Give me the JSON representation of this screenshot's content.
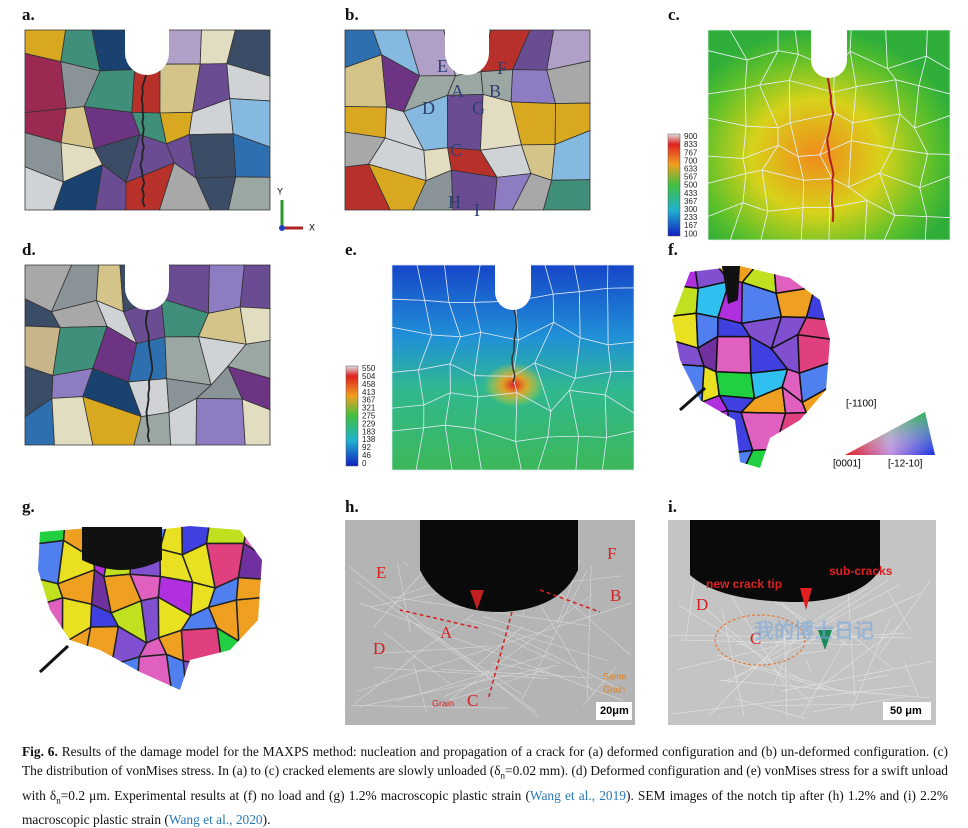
{
  "panel_labels": [
    "a.",
    "b.",
    "c.",
    "d.",
    "e.",
    "f.",
    "g.",
    "h.",
    "i."
  ],
  "grain_labels": [
    "E",
    "F",
    "A",
    "B",
    "D",
    "G",
    "C",
    "H",
    "I"
  ],
  "axis_triad": {
    "y": "Y",
    "x": "X"
  },
  "colorbar_c": [
    900,
    833,
    767,
    700,
    633,
    567,
    500,
    433,
    367,
    300,
    233,
    167,
    100
  ],
  "colorbar_e": [
    550,
    504,
    458,
    413,
    367,
    321,
    275,
    229,
    183,
    138,
    92,
    46,
    0
  ],
  "ipf_legend": [
    "[-1100]",
    "[0001]",
    "[-12-10]"
  ],
  "sem_h": {
    "labels": [
      "E",
      "F",
      "B",
      "A",
      "D"
    ],
    "grain_c": [
      "Grain",
      "C"
    ],
    "same_grain": [
      "Same",
      "Grain"
    ],
    "scale": "20μm"
  },
  "sem_i": {
    "new_crack_tip": "new crack tip",
    "sub_cracks": "sub-cracks",
    "labels": [
      "D",
      "C"
    ],
    "scale": "50 μm"
  },
  "watermark": "我的博士日记",
  "caption": [
    "Fig. 6.",
    " Results of the damage model for the MAXPS method: nucleation and propagation of a crack for (a) deformed configuration and (b) un-deformed configuration. (c) The distribution of vonMises stress. In (a) to (c) cracked elements are slowly unloaded (δ",
    "n",
    "=0.02 mm). (d) Deformed configuration and (e) vonMises stress for a swift unload with δ",
    "n",
    "=0.2 μm. Experimental results at (f) no load and (g) 1.2% macroscopic plastic strain (",
    "Wang et al., 2019",
    "). SEM images of the notch tip after (h) 1.2% and (i) 2.2% macroscopic plastic strain (",
    "Wang et al., 2020",
    ")."
  ]
}
